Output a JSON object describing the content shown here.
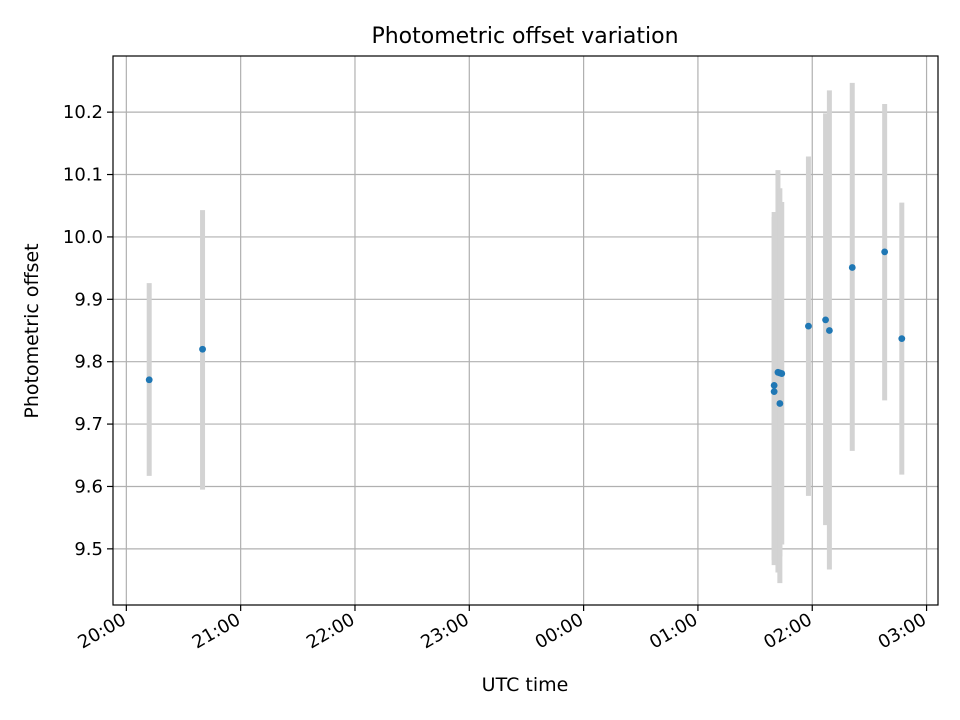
{
  "chart_data": {
    "type": "scatter",
    "title": "Photometric offset variation",
    "xlabel": "UTC time",
    "ylabel": "Photometric offset",
    "grid": true,
    "x_tick_labels": [
      "20:00",
      "21:00",
      "22:00",
      "23:00",
      "00:00",
      "01:00",
      "02:00",
      "03:00"
    ],
    "y_ticks": [
      9.5,
      9.6,
      9.7,
      9.8,
      9.9,
      10.0,
      10.1,
      10.2
    ],
    "y_tick_labels": [
      "9.5",
      "9.6",
      "9.7",
      "9.8",
      "9.9",
      "10.0",
      "10.1",
      "10.2"
    ],
    "xlim": [
      "19:53",
      "03:06"
    ],
    "ylim": [
      9.41,
      10.29
    ],
    "point_color": "#1f77b4",
    "errorbar_color": "#d3d3d3",
    "series": [
      {
        "points": [
          {
            "x": "20:12",
            "y": 9.771,
            "ylow": 9.617,
            "yhigh": 9.926
          },
          {
            "x": "20:40",
            "y": 9.82,
            "ylow": 9.595,
            "yhigh": 10.043
          },
          {
            "x": "01:40",
            "y": 9.762,
            "ylow": 9.482,
            "yhigh": 10.04
          },
          {
            "x": "01:40",
            "y": 9.752,
            "ylow": 9.474,
            "yhigh": 10.032
          },
          {
            "x": "01:42",
            "y": 9.783,
            "ylow": 9.462,
            "yhigh": 10.107
          },
          {
            "x": "01:43",
            "y": 9.733,
            "ylow": 9.445,
            "yhigh": 10.021
          },
          {
            "x": "01:43",
            "y": 9.782,
            "ylow": 9.488,
            "yhigh": 10.078
          },
          {
            "x": "01:44",
            "y": 9.781,
            "ylow": 9.507,
            "yhigh": 10.056
          },
          {
            "x": "01:58",
            "y": 9.857,
            "ylow": 9.585,
            "yhigh": 10.129
          },
          {
            "x": "02:07",
            "y": 9.867,
            "ylow": 9.538,
            "yhigh": 10.198
          },
          {
            "x": "02:09",
            "y": 9.85,
            "ylow": 9.467,
            "yhigh": 10.235
          },
          {
            "x": "02:21",
            "y": 9.951,
            "ylow": 9.657,
            "yhigh": 10.247
          },
          {
            "x": "02:38",
            "y": 9.976,
            "ylow": 9.738,
            "yhigh": 10.213
          },
          {
            "x": "02:47",
            "y": 9.837,
            "ylow": 9.619,
            "yhigh": 10.055
          }
        ]
      }
    ]
  }
}
